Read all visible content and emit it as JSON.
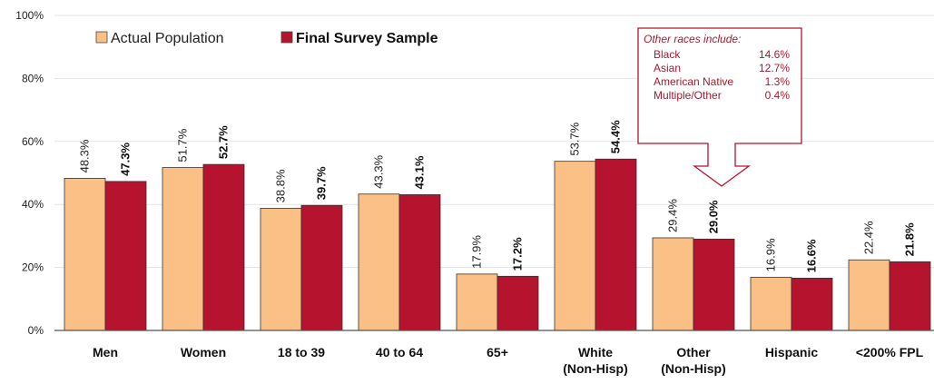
{
  "chart_data": {
    "type": "bar",
    "categories": [
      [
        "Men"
      ],
      [
        "Women"
      ],
      [
        "18 to 39"
      ],
      [
        "40 to 64"
      ],
      [
        "65+"
      ],
      [
        "White",
        "(Non-Hisp)"
      ],
      [
        "Other",
        "(Non-Hisp)"
      ],
      [
        "Hispanic"
      ],
      [
        "<200% FPL"
      ]
    ],
    "series": [
      {
        "name": "Actual Population",
        "color": "#FAC086",
        "values": [
          48.3,
          51.7,
          38.8,
          43.3,
          17.9,
          53.7,
          29.4,
          16.9,
          22.4
        ],
        "labels": [
          "48.3%",
          "51.7%",
          "38.8%",
          "43.3%",
          "17.9%",
          "53.7%",
          "29.4%",
          "16.9%",
          "22.4%"
        ]
      },
      {
        "name": "Final Survey Sample",
        "color": "#B5132E",
        "values": [
          47.3,
          52.7,
          39.7,
          43.1,
          17.2,
          54.4,
          29.0,
          16.6,
          21.8
        ],
        "labels": [
          "47.3%",
          "52.7%",
          "39.7%",
          "43.1%",
          "17.2%",
          "54.4%",
          "29.0%",
          "16.6%",
          "21.8%"
        ]
      }
    ],
    "ylim": [
      0,
      100
    ],
    "yticks": [
      "0%",
      "20%",
      "40%",
      "60%",
      "80%",
      "100%"
    ],
    "grid": true,
    "legend_position": "top-left",
    "callout": {
      "title": "Other races include:",
      "rows": [
        {
          "label": "Black",
          "value": "14.6%"
        },
        {
          "label": "Asian",
          "value": "12.7%"
        },
        {
          "label": "American Native",
          "value": "1.3%"
        },
        {
          "label": "Multiple/Other",
          "value": "0.4%"
        }
      ],
      "color": "#B5132E"
    }
  }
}
